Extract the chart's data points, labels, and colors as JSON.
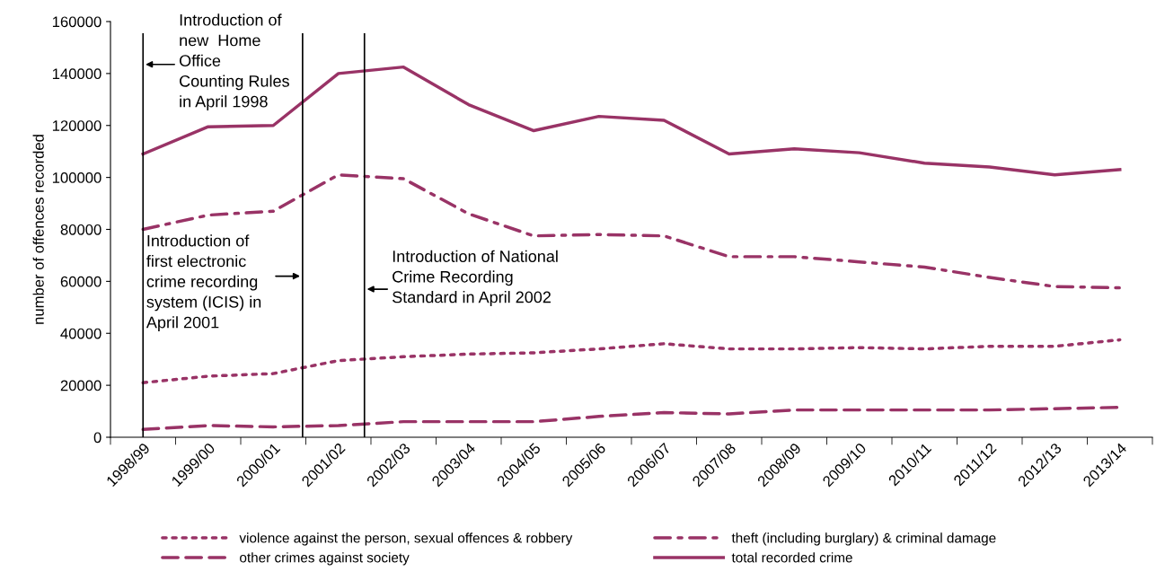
{
  "chart_data": {
    "type": "line",
    "ylabel": "number of offences recorded",
    "categories": [
      "1998/99",
      "1999/00",
      "2000/01",
      "2001/02",
      "2002/03",
      "2003/04",
      "2004/05",
      "2005/06",
      "2006/07",
      "2007/08",
      "2008/09",
      "2009/10",
      "2010/11",
      "2011/12",
      "2012/13",
      "2013/14"
    ],
    "series": [
      {
        "name": "violence against the person, sexual offences & robbery",
        "color": "#993366",
        "line_style": "dotted",
        "values": [
          21000,
          23500,
          24500,
          29500,
          31000,
          32000,
          32500,
          34000,
          36000,
          34000,
          34000,
          34500,
          34000,
          35000,
          35000,
          37500
        ]
      },
      {
        "name": "theft (including burglary) & criminal damage",
        "color": "#993366",
        "line_style": "dashdot",
        "values": [
          80000,
          85500,
          87000,
          101000,
          99500,
          86000,
          77500,
          78000,
          77500,
          69500,
          69500,
          67500,
          65500,
          61500,
          58000,
          57500
        ]
      },
      {
        "name": "other crimes against society",
        "color": "#993366",
        "line_style": "dashed",
        "values": [
          3000,
          4500,
          4000,
          4500,
          6000,
          6000,
          6000,
          8000,
          9500,
          9000,
          10500,
          10500,
          10500,
          10500,
          11000,
          11500
        ]
      },
      {
        "name": "total recorded crime",
        "color": "#993366",
        "line_style": "solid",
        "values": [
          109000,
          119500,
          120000,
          140000,
          142500,
          128000,
          118000,
          123500,
          122000,
          109000,
          111000,
          109500,
          105500,
          104000,
          101000,
          103000
        ]
      }
    ],
    "ylim": [
      0,
      160000
    ],
    "yticks": [
      0,
      20000,
      40000,
      60000,
      80000,
      100000,
      120000,
      140000,
      160000
    ],
    "annotations": [
      "Introduction of\nnew  Home\nOffice\nCounting Rules\nin April 1998",
      "Introduction of\nfirst electronic\ncrime recording\nsystem (ICIS) in\nApril 2001",
      "Introduction of National\nCrime Recording\nStandard in April 2002"
    ],
    "grid": false,
    "legend": "bottom",
    "marker": "none"
  }
}
